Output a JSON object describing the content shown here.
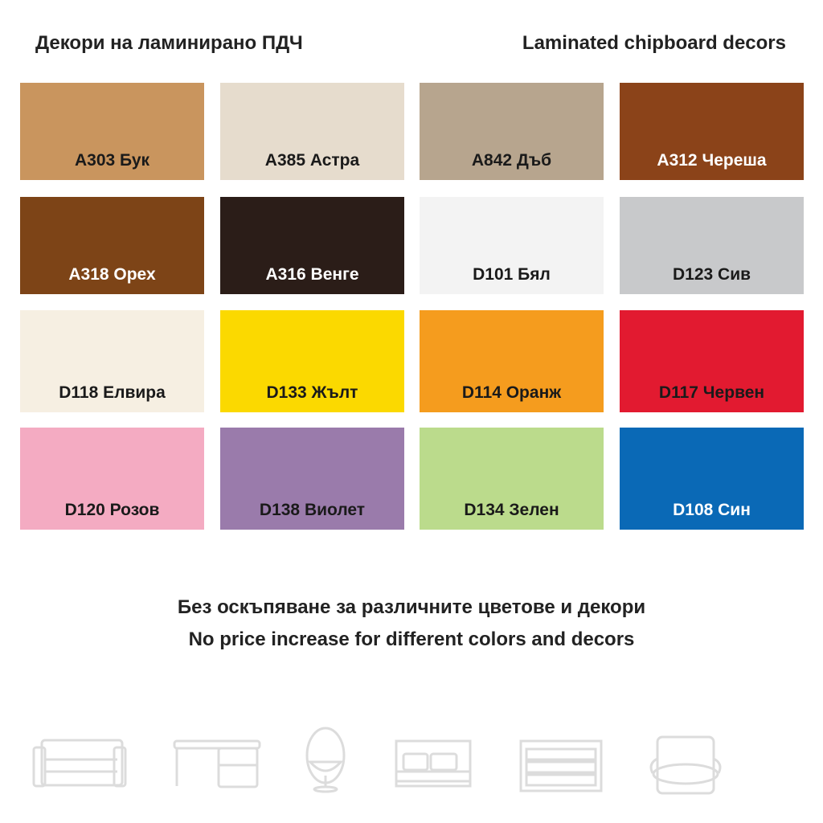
{
  "header": {
    "left": "Декори на ламинирано ПДЧ",
    "right": "Laminated chipboard decors"
  },
  "swatches": [
    {
      "label": "A303 Бук",
      "color": "#c9955e",
      "text": "#1a1a1a"
    },
    {
      "label": "A385 Астра",
      "color": "#e6dccd",
      "text": "#1a1a1a"
    },
    {
      "label": "A842 Дъб",
      "color": "#b7a58e",
      "text": "#1a1a1a"
    },
    {
      "label": "A312 Череша",
      "color": "#8b4319",
      "text": "#ffffff"
    },
    {
      "label": "A318 Орех",
      "color": "#7d4417",
      "text": "#ffffff"
    },
    {
      "label": "A316 Венге",
      "color": "#2b1d18",
      "text": "#ffffff"
    },
    {
      "label": "D101 Бял",
      "color": "#f3f3f3",
      "text": "#1a1a1a"
    },
    {
      "label": "D123 Сив",
      "color": "#c8c9cb",
      "text": "#1a1a1a"
    },
    {
      "label": "D118 Елвира",
      "color": "#f6efe2",
      "text": "#1a1a1a"
    },
    {
      "label": "D133 Жълт",
      "color": "#fbd900",
      "text": "#1a1a1a"
    },
    {
      "label": "D114 Оранж",
      "color": "#f59c1e",
      "text": "#1a1a1a"
    },
    {
      "label": "D117 Червен",
      "color": "#e21a30",
      "text": "#1a1a1a"
    },
    {
      "label": "D120 Розов",
      "color": "#f4abc2",
      "text": "#1a1a1a"
    },
    {
      "label": "D138 Виолет",
      "color": "#9a7bab",
      "text": "#1a1a1a"
    },
    {
      "label": "D134 Зелен",
      "color": "#bbdb8c",
      "text": "#1a1a1a"
    },
    {
      "label": "D108 Син",
      "color": "#0a69b6",
      "text": "#ffffff"
    }
  ],
  "footer": {
    "line1": "Без оскъпяване за различните цветове и декори",
    "line2": "No price increase for different colors and decors"
  },
  "icons": [
    "sofa-icon",
    "desk-icon",
    "egg-chair-icon",
    "bed-icon",
    "dresser-icon",
    "armchair-icon"
  ]
}
